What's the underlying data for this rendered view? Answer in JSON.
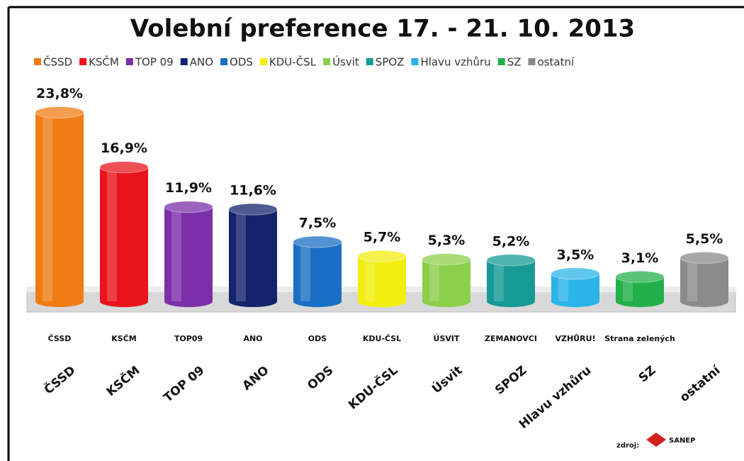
{
  "chart_data": {
    "type": "bar",
    "title": "Volební preference  17. - 21. 10. 2013",
    "categories": [
      "ČSSD",
      "KSČM",
      "TOP 09",
      "ANO",
      "ODS",
      "KDU-ČSL",
      "Úsvit",
      "SPOZ",
      "Hlavu vzhůru",
      "SZ",
      "ostatní"
    ],
    "values": [
      23.8,
      16.9,
      11.9,
      11.6,
      7.5,
      5.7,
      5.3,
      5.2,
      3.5,
      3.1,
      5.5
    ],
    "value_labels": [
      "23,8%",
      "16,9%",
      "11,9%",
      "11,6%",
      "7,5%",
      "5,7%",
      "5,3%",
      "5,2%",
      "3,5%",
      "3,1%",
      "5,5%"
    ],
    "colors": [
      "#f07c14",
      "#e8141c",
      "#7b2fa8",
      "#14236b",
      "#1a6fc4",
      "#f2ee10",
      "#8ccf4a",
      "#169a95",
      "#2ab4e8",
      "#22b04a",
      "#8a8a8a"
    ],
    "logos": [
      "ČSSD",
      "KSČM",
      "TOP09",
      "ANO",
      "ODS",
      "KDU-ČSL",
      "ÚSVIT",
      "ZEMANOVCI",
      "VZHŮRU!",
      "Strana zelených",
      null
    ],
    "ylim": [
      0,
      25
    ],
    "source_label": "zdroj:",
    "source": "SANEP"
  }
}
